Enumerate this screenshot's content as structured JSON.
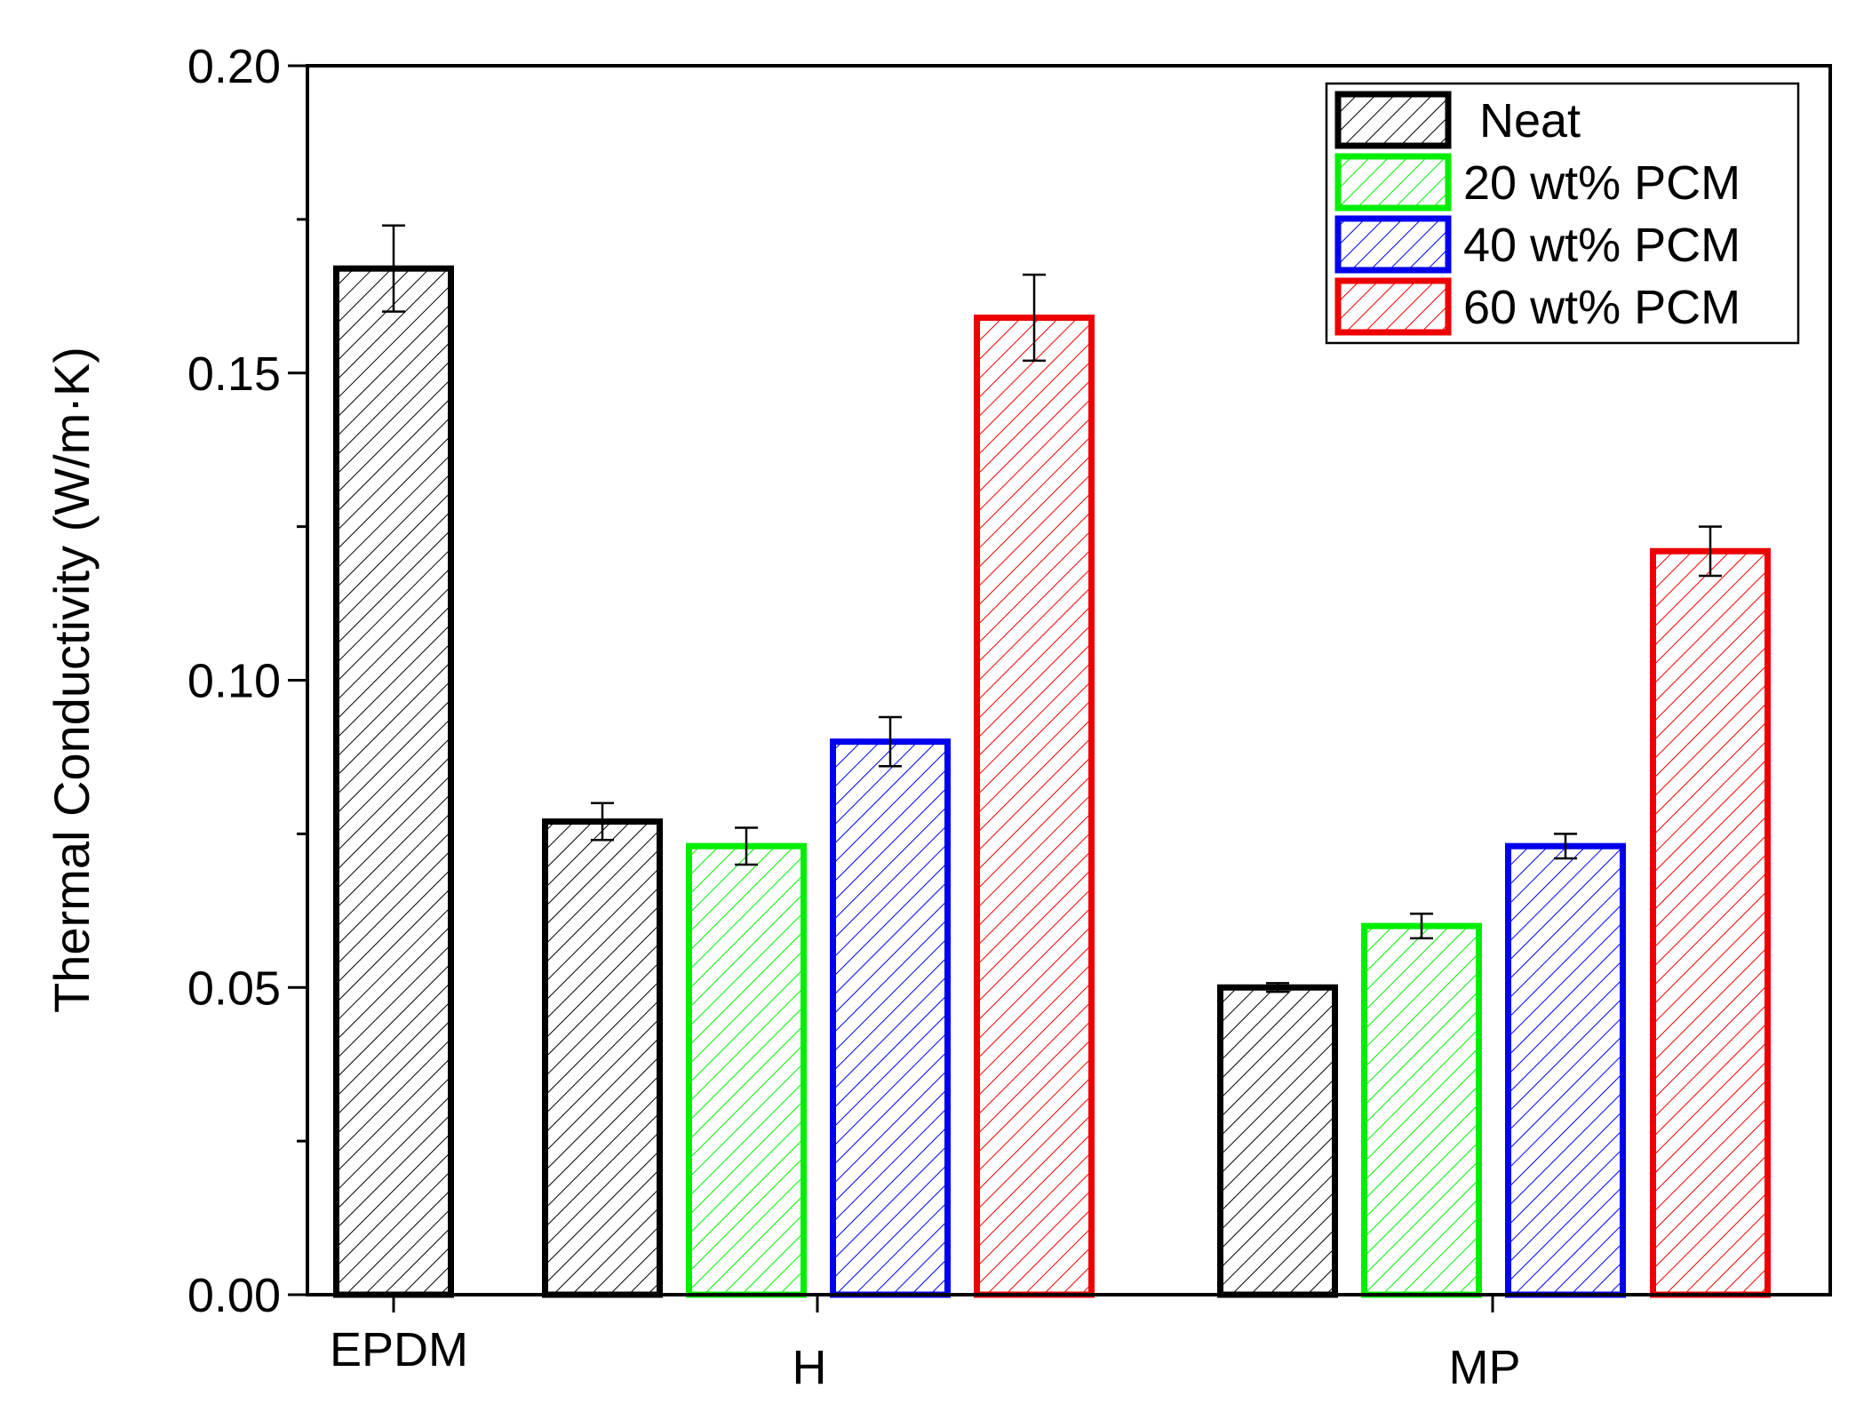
{
  "chart_data": {
    "type": "bar",
    "title": "",
    "xlabel": "",
    "ylabel": "Thermal Conductivity (W/m·K)",
    "ylim": [
      0,
      0.2
    ],
    "yticks": [
      "0.00",
      "0.05",
      "0.10",
      "0.15",
      "0.20"
    ],
    "ytick_values": [
      0,
      0.05,
      0.1,
      0.15,
      0.2
    ],
    "grid": false,
    "legend_position": "top-right",
    "categories": [
      "EPDM",
      "H",
      "MP"
    ],
    "series": [
      {
        "name": "Neat",
        "color": "#000000",
        "values": [
          0.167,
          0.077,
          0.05
        ],
        "errors": [
          0.007,
          0.003,
          0.0007
        ]
      },
      {
        "name": "20 wt% PCM",
        "color": "#00ee00",
        "values": [
          null,
          0.073,
          0.06
        ],
        "errors": [
          null,
          0.003,
          0.002
        ]
      },
      {
        "name": "40 wt% PCM",
        "color": "#0000ee",
        "values": [
          null,
          0.09,
          0.073
        ],
        "errors": [
          null,
          0.004,
          0.002
        ]
      },
      {
        "name": "60 wt% PCM",
        "color": "#ee0000",
        "values": [
          null,
          0.159,
          0.121
        ],
        "errors": [
          null,
          0.007,
          0.004
        ]
      }
    ]
  }
}
